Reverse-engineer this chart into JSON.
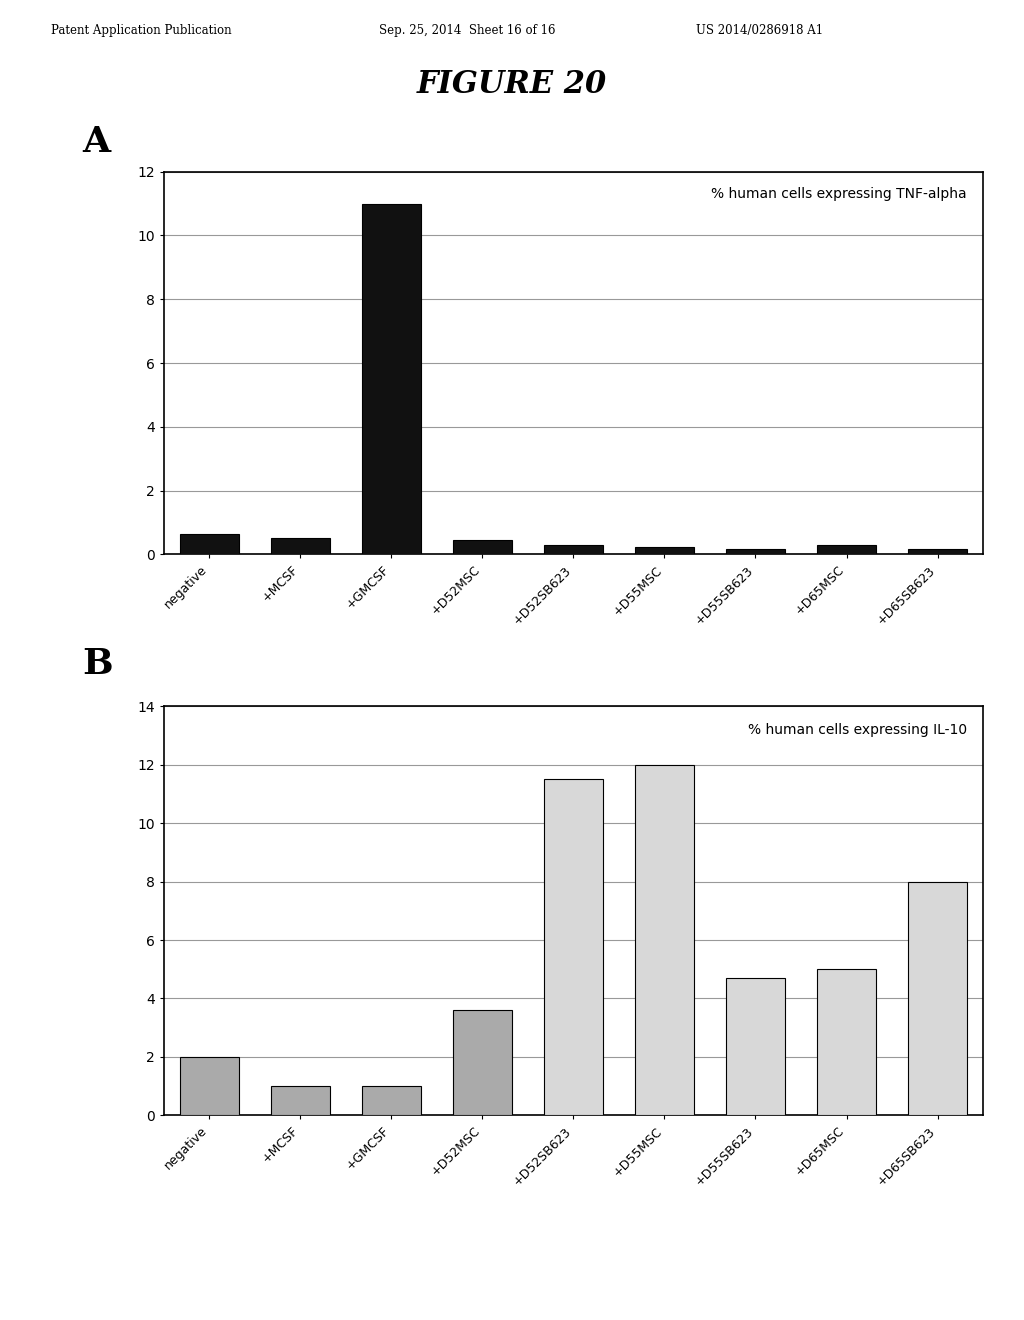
{
  "header_left": "Patent Application Publication",
  "header_mid": "Sep. 25, 2014  Sheet 16 of 16",
  "header_right": "US 2014/0286918 A1",
  "figure_title": "FIGURE 20",
  "panel_A_label": "A",
  "panel_B_label": "B",
  "chart_A": {
    "title": "% human cells expressing TNF-alpha",
    "categories": [
      "negative",
      "+MCSF",
      "+GMCSF",
      "+D52MSC",
      "+D52SB623",
      "+D55MSC",
      "+D55SB623",
      "+D65MSC",
      "+D65SB623"
    ],
    "values": [
      0.65,
      0.5,
      11.0,
      0.45,
      0.28,
      0.22,
      0.18,
      0.28,
      0.18
    ],
    "bar_color": "#111111",
    "ylim": [
      0,
      12
    ],
    "yticks": [
      0,
      2,
      4,
      6,
      8,
      10,
      12
    ]
  },
  "chart_B": {
    "title": "% human cells expressing IL-10",
    "categories": [
      "negative",
      "+MCSF",
      "+GMCSF",
      "+D52MSC",
      "+D52SB623",
      "+D55MSC",
      "+D55SB623",
      "+D65MSC",
      "+D65SB623"
    ],
    "values": [
      2.0,
      1.0,
      1.0,
      3.6,
      11.5,
      12.0,
      4.7,
      5.0,
      8.0
    ],
    "bar_colors": [
      "#aaaaaa",
      "#aaaaaa",
      "#aaaaaa",
      "#aaaaaa",
      "#d8d8d8",
      "#d8d8d8",
      "#d8d8d8",
      "#d8d8d8",
      "#d8d8d8"
    ],
    "ylim": [
      0,
      14
    ],
    "yticks": [
      0,
      2,
      4,
      6,
      8,
      10,
      12,
      14
    ]
  },
  "bg_color": "#ffffff",
  "grid_color": "#999999",
  "bar_width": 0.65,
  "title_inner_fontsize": 10,
  "tick_fontsize": 10,
  "xtick_fontsize": 9
}
